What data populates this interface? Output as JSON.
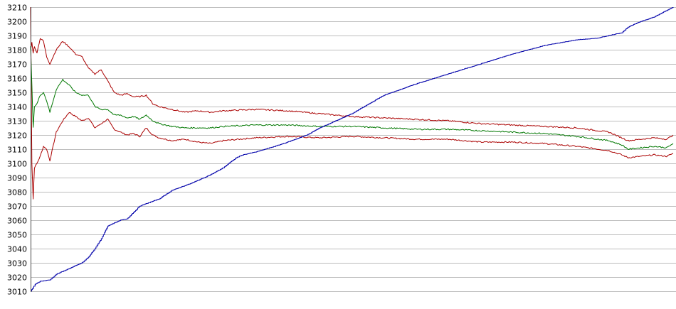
{
  "chart_data": {
    "type": "line",
    "title": "",
    "xlabel": "",
    "ylabel": "",
    "xlim": [
      0,
      100
    ],
    "ylim": [
      3010,
      3210
    ],
    "yticks": [
      3010,
      3020,
      3030,
      3040,
      3050,
      3060,
      3070,
      3080,
      3090,
      3100,
      3110,
      3120,
      3130,
      3140,
      3150,
      3160,
      3170,
      3180,
      3190,
      3200,
      3210
    ],
    "grid": true,
    "legend": "none",
    "series": [
      {
        "color": "#aa0000",
        "x": [
          0,
          0.2,
          0.4,
          0.6,
          1,
          1.5,
          2,
          2.5,
          3,
          4,
          5,
          6,
          7,
          8,
          9,
          10,
          11,
          12,
          13,
          14,
          15,
          16,
          17,
          18,
          19,
          20,
          22,
          24,
          26,
          28,
          30,
          35,
          40,
          45,
          50,
          55,
          60,
          65,
          70,
          75,
          80,
          85,
          90,
          92,
          93,
          95,
          97,
          99,
          100
        ],
        "values": [
          3210,
          3100,
          3075,
          3097,
          3100,
          3105,
          3112,
          3110,
          3102,
          3122,
          3130,
          3136,
          3133,
          3130,
          3132,
          3125,
          3128,
          3131,
          3124,
          3122,
          3120,
          3121,
          3119,
          3125,
          3120,
          3118,
          3116,
          3117,
          3115,
          3114,
          3116,
          3118,
          3119,
          3118,
          3119,
          3118,
          3117,
          3117,
          3115,
          3115,
          3114,
          3112,
          3109,
          3106,
          3104,
          3105,
          3106,
          3105,
          3107
        ]
      },
      {
        "color": "#aa0000",
        "x": [
          0,
          0.2,
          0.4,
          0.6,
          1,
          1.5,
          2,
          2.5,
          3,
          4,
          5,
          6,
          7,
          8,
          9,
          10,
          11,
          12,
          13,
          14,
          15,
          16,
          17,
          18,
          19,
          20,
          22,
          24,
          26,
          28,
          30,
          35,
          40,
          45,
          50,
          55,
          60,
          65,
          70,
          75,
          80,
          85,
          90,
          92,
          93,
          95,
          97,
          99,
          100
        ],
        "values": [
          3180,
          3185,
          3178,
          3182,
          3178,
          3188,
          3186,
          3175,
          3170,
          3180,
          3186,
          3182,
          3177,
          3175,
          3167,
          3163,
          3166,
          3158,
          3150,
          3148,
          3149,
          3147,
          3147,
          3148,
          3142,
          3140,
          3138,
          3136,
          3137,
          3136,
          3137,
          3138,
          3137,
          3135,
          3133,
          3132,
          3131,
          3130,
          3128,
          3127,
          3126,
          3125,
          3122,
          3118,
          3116,
          3117,
          3118,
          3117,
          3120
        ]
      },
      {
        "color": "#007700",
        "x": [
          0,
          0.2,
          0.4,
          0.6,
          1,
          1.5,
          2,
          2.5,
          3,
          4,
          5,
          6,
          7,
          8,
          9,
          10,
          11,
          12,
          13,
          14,
          15,
          16,
          17,
          18,
          19,
          20,
          22,
          24,
          26,
          28,
          30,
          35,
          40,
          45,
          50,
          55,
          60,
          65,
          70,
          75,
          80,
          85,
          90,
          92,
          93,
          95,
          97,
          99,
          100
        ],
        "values": [
          3182,
          3155,
          3125,
          3140,
          3142,
          3148,
          3150,
          3144,
          3136,
          3152,
          3159,
          3155,
          3150,
          3148,
          3148,
          3140,
          3138,
          3138,
          3134,
          3134,
          3132,
          3133,
          3131,
          3134,
          3130,
          3128,
          3126,
          3125,
          3125,
          3125,
          3126,
          3127,
          3127,
          3126,
          3126,
          3125,
          3124,
          3124,
          3123,
          3122,
          3121,
          3119,
          3116,
          3113,
          3110,
          3111,
          3112,
          3111,
          3114
        ]
      },
      {
        "color": "#0000aa",
        "x": [
          0,
          0.3,
          0.7,
          1.5,
          3,
          4,
          5,
          6,
          7,
          8,
          9,
          10,
          11,
          12,
          13,
          14,
          15,
          17,
          20,
          22,
          25,
          28,
          30,
          32,
          33,
          35,
          38,
          40,
          43,
          45,
          50,
          55,
          60,
          65,
          70,
          75,
          80,
          85,
          88,
          90,
          92,
          93,
          95,
          97,
          100
        ],
        "values": [
          3010,
          3012,
          3015,
          3017,
          3018,
          3022,
          3024,
          3026,
          3028,
          3030,
          3034,
          3040,
          3047,
          3056,
          3058,
          3060,
          3061,
          3070,
          3075,
          3081,
          3086,
          3092,
          3097,
          3104,
          3106,
          3108,
          3112,
          3115,
          3120,
          3125,
          3135,
          3148,
          3156,
          3163,
          3170,
          3177,
          3183,
          3187,
          3188,
          3190,
          3192,
          3196,
          3200,
          3203,
          3210
        ]
      }
    ]
  }
}
